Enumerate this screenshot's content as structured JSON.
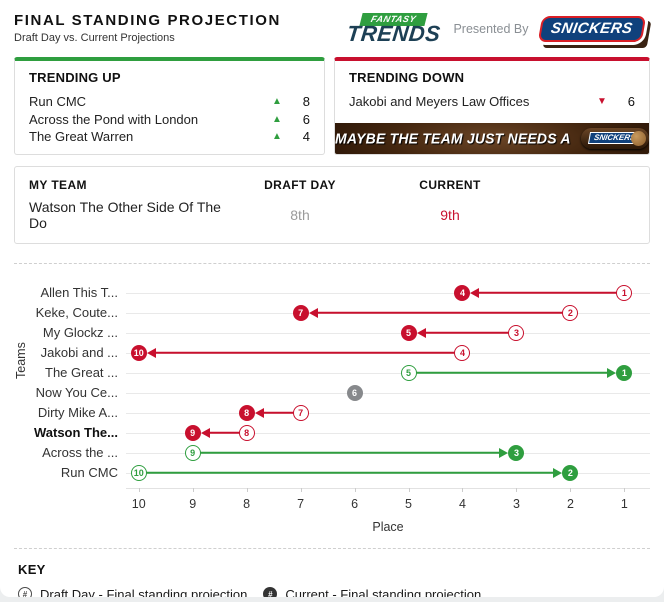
{
  "header": {
    "title": "FINAL STANDING PROJECTION",
    "subtitle": "Draft Day vs. Current Projections",
    "presented_by": "Presented By",
    "brand": {
      "fantasy": "FANTASY",
      "trends": "TRENDS",
      "sponsor": "SNICKERS"
    }
  },
  "trending_up": {
    "title": "TRENDING UP",
    "items": [
      {
        "team": "Run CMC",
        "change": "8"
      },
      {
        "team": "Across the Pond with London",
        "change": "6"
      },
      {
        "team": "The Great Warren",
        "change": "4"
      }
    ]
  },
  "trending_down": {
    "title": "TRENDING DOWN",
    "items": [
      {
        "team": "Jakobi and Meyers Law Offices",
        "change": "6"
      }
    ],
    "ad": {
      "text": "MAYBE THE TEAM JUST NEEDS A",
      "sponsor": "SNICKERS"
    }
  },
  "my_team": {
    "columns": {
      "team": "MY TEAM",
      "draft": "DRAFT DAY",
      "current": "CURRENT"
    },
    "team": "Watson The Other Side Of The Do",
    "draft": "8th",
    "current": "9th"
  },
  "chart_data": {
    "type": "scatter",
    "subtype": "dumbbell-arrow",
    "xlabel": "Place",
    "ylabel": "Teams",
    "x_ticks": [
      10,
      9,
      8,
      7,
      6,
      5,
      4,
      3,
      2,
      1
    ],
    "x_reversed": true,
    "rows": [
      {
        "team": "Allen This T...",
        "draft": 1,
        "current": 4,
        "trend": "down",
        "is_my_team": false
      },
      {
        "team": "Keke, Coute...",
        "draft": 2,
        "current": 7,
        "trend": "down",
        "is_my_team": false
      },
      {
        "team": "My Glockz ...",
        "draft": 3,
        "current": 5,
        "trend": "down",
        "is_my_team": false
      },
      {
        "team": "Jakobi and ...",
        "draft": 4,
        "current": 10,
        "trend": "down",
        "is_my_team": false
      },
      {
        "team": "The Great ...",
        "draft": 5,
        "current": 1,
        "trend": "up",
        "is_my_team": false
      },
      {
        "team": "Now You Ce...",
        "draft": 6,
        "current": 6,
        "trend": "none",
        "is_my_team": false
      },
      {
        "team": "Dirty Mike A...",
        "draft": 7,
        "current": 8,
        "trend": "down",
        "is_my_team": false
      },
      {
        "team": "Watson The...",
        "draft": 8,
        "current": 9,
        "trend": "down",
        "is_my_team": true
      },
      {
        "team": "Across the ...",
        "draft": 9,
        "current": 3,
        "trend": "up",
        "is_my_team": false
      },
      {
        "team": "Run CMC",
        "draft": 10,
        "current": 2,
        "trend": "up",
        "is_my_team": false
      }
    ]
  },
  "key": {
    "title": "KEY",
    "items": [
      {
        "symbol": "#",
        "style": "outlined",
        "label": "Draft Day - Final standing projection"
      },
      {
        "symbol": "#",
        "style": "filled",
        "label": "Current - Final standing projection"
      }
    ]
  },
  "colors": {
    "up": "#2f9e3f",
    "down": "#c8102e",
    "neutral": "#87898c",
    "trends_navy": "#1d4055",
    "sponsor_blue": "#10417c",
    "sponsor_red": "#da1f26"
  }
}
